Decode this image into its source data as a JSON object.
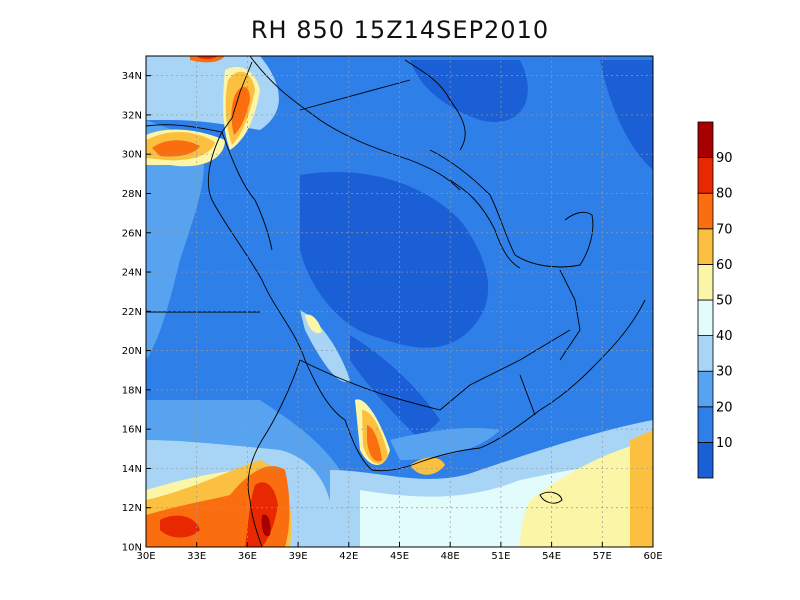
{
  "title": "RH 850 15Z14SEP2010",
  "map": {
    "lon_range": [
      30,
      60
    ],
    "lat_range": [
      10,
      35
    ],
    "lon_ticks": [
      "30E",
      "33E",
      "36E",
      "39E",
      "42E",
      "45E",
      "48E",
      "51E",
      "54E",
      "57E",
      "60E"
    ],
    "lat_ticks": [
      "10N",
      "12N",
      "14N",
      "16N",
      "18N",
      "20N",
      "22N",
      "24N",
      "26N",
      "28N",
      "30N",
      "32N",
      "34N"
    ],
    "grid": true
  },
  "colorbar": {
    "levels": [
      "10",
      "20",
      "30",
      "40",
      "50",
      "60",
      "70",
      "80",
      "90"
    ],
    "colors": [
      "#1a5fd6",
      "#2e7fe8",
      "#57a3f0",
      "#a8d4f5",
      "#e2fbfb",
      "#fbf5a8",
      "#fbc040",
      "#fb6e10",
      "#e82800",
      "#a80000"
    ]
  }
}
